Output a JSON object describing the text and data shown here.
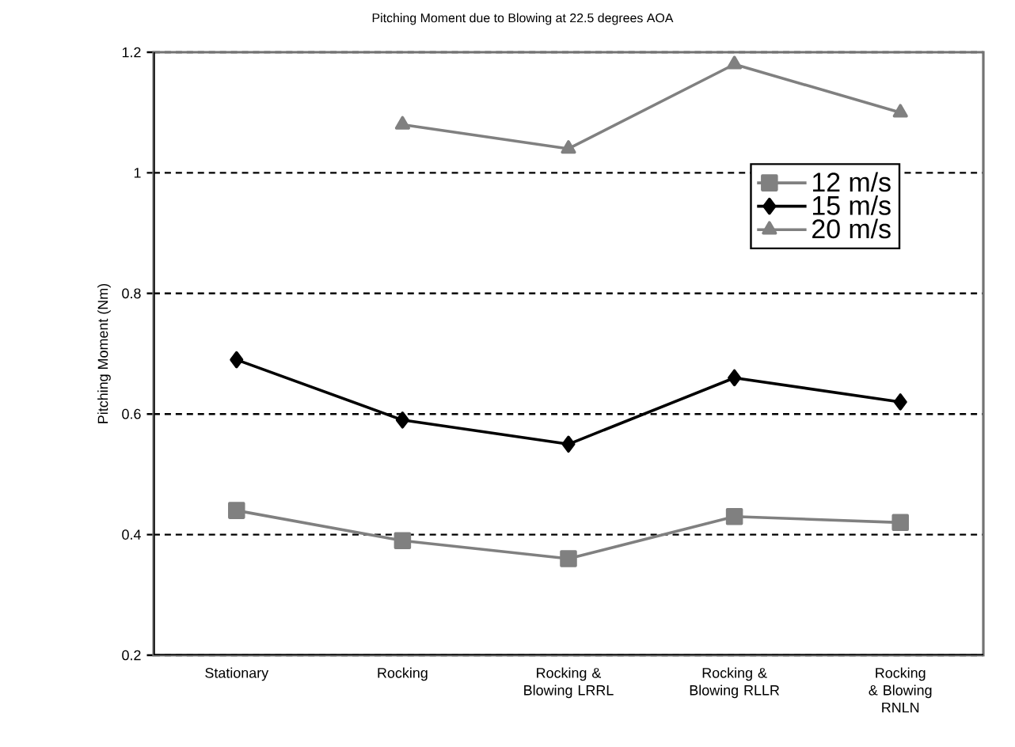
{
  "chart_data": {
    "type": "line",
    "title": "Pitching Moment due to Blowing at 22.5 degrees AOA",
    "ylabel": "Pitching Moment (Nm)",
    "categories": [
      "Stationary",
      "Rocking",
      "Rocking & Blowing LRRL",
      "Rocking & Blowing RLLR",
      "Rocking & Blowing RNLN"
    ],
    "series": [
      {
        "name": "12 m/s",
        "color": "#808080",
        "marker": "square",
        "values": [
          0.44,
          0.39,
          0.36,
          0.43,
          0.42
        ]
      },
      {
        "name": "15 m/s",
        "color": "#000000",
        "marker": "diamond",
        "values": [
          0.69,
          0.59,
          0.55,
          0.66,
          0.62
        ]
      },
      {
        "name": "20 m/s",
        "color": "#808080",
        "marker": "triangle",
        "values": [
          null,
          1.08,
          1.04,
          1.18,
          1.1
        ]
      }
    ],
    "ylim": [
      0.2,
      1.2
    ],
    "yticks": [
      0.2,
      0.4,
      0.6,
      0.8,
      1,
      1.2
    ],
    "grid": "y",
    "legend": "top right",
    "line_style": "solid"
  }
}
